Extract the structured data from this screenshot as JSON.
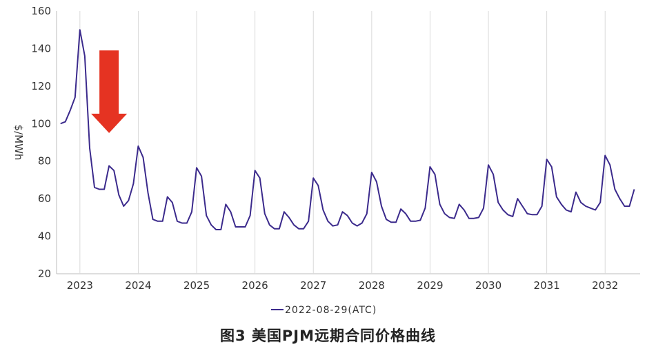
{
  "caption": "图3 美国PJM远期合同价格曲线",
  "chart_data": {
    "type": "line",
    "title": "",
    "xlabel": "",
    "ylabel": "$/MWh",
    "ylim": [
      20,
      160
    ],
    "yticks": [
      20,
      40,
      60,
      80,
      100,
      120,
      140,
      160
    ],
    "xlim": [
      2022.6,
      2032.6
    ],
    "xticks": [
      "2023",
      "2024",
      "2025",
      "2026",
      "2027",
      "2028",
      "2029",
      "2030",
      "2031",
      "2032"
    ],
    "grid": "vertical",
    "legend_position": "bottom-center",
    "series": [
      {
        "name": "2022-08-29(ATC)",
        "color": "#3b2a8c",
        "x": [
          2022.667,
          2022.75,
          2022.833,
          2022.917,
          2023.0,
          2023.083,
          2023.167,
          2023.25,
          2023.333,
          2023.417,
          2023.5,
          2023.583,
          2023.667,
          2023.75,
          2023.833,
          2023.917,
          2024.0,
          2024.083,
          2024.167,
          2024.25,
          2024.333,
          2024.417,
          2024.5,
          2024.583,
          2024.667,
          2024.75,
          2024.833,
          2024.917,
          2025.0,
          2025.083,
          2025.167,
          2025.25,
          2025.333,
          2025.417,
          2025.5,
          2025.583,
          2025.667,
          2025.75,
          2025.833,
          2025.917,
          2026.0,
          2026.083,
          2026.167,
          2026.25,
          2026.333,
          2026.417,
          2026.5,
          2026.583,
          2026.667,
          2026.75,
          2026.833,
          2026.917,
          2027.0,
          2027.083,
          2027.167,
          2027.25,
          2027.333,
          2027.417,
          2027.5,
          2027.583,
          2027.667,
          2027.75,
          2027.833,
          2027.917,
          2028.0,
          2028.083,
          2028.167,
          2028.25,
          2028.333,
          2028.417,
          2028.5,
          2028.583,
          2028.667,
          2028.75,
          2028.833,
          2028.917,
          2029.0,
          2029.083,
          2029.167,
          2029.25,
          2029.333,
          2029.417,
          2029.5,
          2029.583,
          2029.667,
          2029.75,
          2029.833,
          2029.917,
          2030.0,
          2030.083,
          2030.167,
          2030.25,
          2030.333,
          2030.417,
          2030.5,
          2030.583,
          2030.667,
          2030.75,
          2030.833,
          2030.917,
          2031.0,
          2031.083,
          2031.167,
          2031.25,
          2031.333,
          2031.417,
          2031.5,
          2031.583,
          2031.667,
          2031.75,
          2031.833,
          2031.917,
          2032.0,
          2032.083,
          2032.167,
          2032.25,
          2032.333,
          2032.417,
          2032.5
        ],
        "values": [
          100,
          101,
          107,
          114,
          150,
          136,
          87,
          66,
          65,
          65,
          77.5,
          75,
          62,
          56,
          59,
          68,
          88,
          82,
          63,
          49,
          48,
          48,
          61,
          58,
          48,
          47,
          47,
          53,
          76.5,
          72,
          51,
          46,
          43.5,
          43.5,
          57,
          53,
          45,
          45,
          45,
          51,
          75,
          71,
          52,
          46,
          44,
          44,
          53,
          50,
          46,
          44,
          44,
          48,
          71,
          67,
          54,
          48,
          45.5,
          46,
          53,
          51,
          47,
          45.5,
          47,
          52,
          74,
          69,
          56,
          49,
          47.5,
          47.5,
          54.5,
          52,
          48,
          48,
          48.5,
          55,
          77,
          73,
          57,
          52,
          50,
          49.5,
          57,
          54,
          49.5,
          49.5,
          50,
          55,
          78,
          73,
          58,
          54,
          51.5,
          50.5,
          60,
          56,
          52,
          51.5,
          51.5,
          56,
          81,
          77,
          61,
          57,
          54,
          53,
          63.5,
          58,
          56,
          55,
          54,
          58,
          83,
          78,
          65,
          60,
          56,
          56,
          65
        ]
      }
    ],
    "annotations": [
      {
        "type": "arrow",
        "direction": "down",
        "color": "#e53322",
        "x": 2023.5,
        "y_from": 139,
        "y_to": 95
      }
    ]
  }
}
